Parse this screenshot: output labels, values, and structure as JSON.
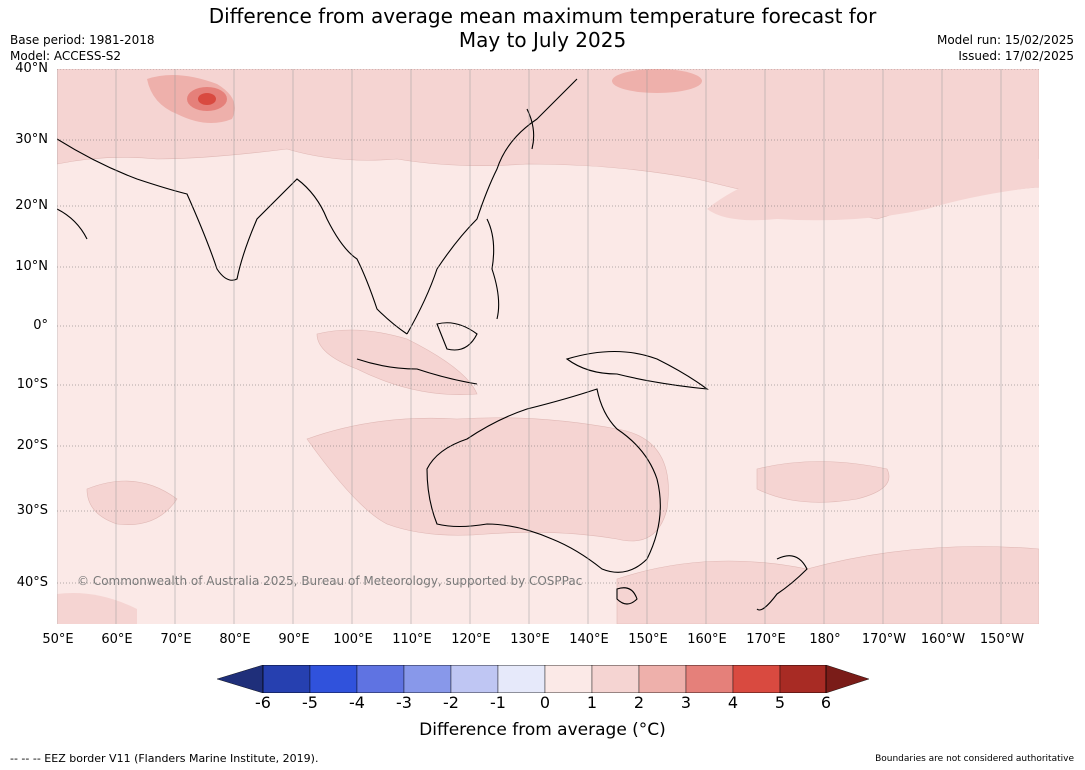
{
  "title_line1": "Difference from average mean maximum temperature forecast for",
  "title_line2": "May to July 2025",
  "base_period": "Base period: 1981-2018",
  "model": "Model: ACCESS-S2",
  "model_run": "Model run: 15/02/2025",
  "issued": "Issued: 17/02/2025",
  "copyright": "© Commonwealth of Australia 2025, Bureau of Meteorology, supported by COSPPac",
  "lat_labels": [
    "40°N",
    "30°N",
    "20°N",
    "10°N",
    "0°",
    "10°S",
    "20°S",
    "30°S",
    "40°S"
  ],
  "lon_labels": [
    "50°E",
    "60°E",
    "70°E",
    "80°E",
    "90°E",
    "100°E",
    "110°E",
    "120°E",
    "130°E",
    "140°E",
    "150°E",
    "160°E",
    "170°E",
    "180°",
    "170°W",
    "160°W",
    "150°W"
  ],
  "colorbar": {
    "ticks": [
      "-6",
      "-5",
      "-4",
      "-3",
      "-2",
      "-1",
      "0",
      "1",
      "2",
      "3",
      "4",
      "5",
      "6"
    ],
    "colors": [
      "#1f2f7a",
      "#2640b0",
      "#3052dc",
      "#5f73e2",
      "#8898ea",
      "#bfc6f3",
      "#e6e9fa",
      "#fbe9e7",
      "#f5d4d2",
      "#eeb0ab",
      "#e5807a",
      "#d94a40",
      "#a82b24",
      "#7a1c18"
    ],
    "label": "Difference from average (°C)"
  },
  "eez_note": "--  --  -- EEZ border V11 (Flanders Marine Institute, 2019).",
  "boundaries_note": "Boundaries are not considered authoritative"
}
